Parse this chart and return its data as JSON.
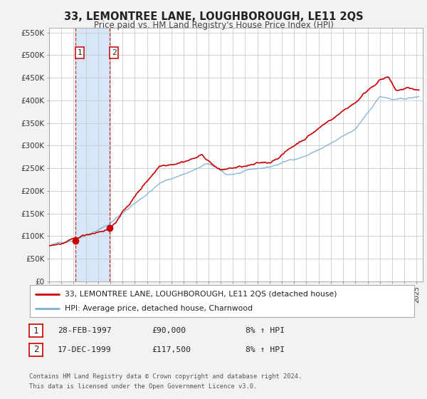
{
  "title": "33, LEMONTREE LANE, LOUGHBOROUGH, LE11 2QS",
  "subtitle": "Price paid vs. HM Land Registry's House Price Index (HPI)",
  "legend_line1": "33, LEMONTREE LANE, LOUGHBOROUGH, LE11 2QS (detached house)",
  "legend_line2": "HPI: Average price, detached house, Charnwood",
  "transaction1_date": "28-FEB-1997",
  "transaction1_price": "£90,000",
  "transaction1_hpi": "8% ↑ HPI",
  "transaction2_date": "17-DEC-1999",
  "transaction2_price": "£117,500",
  "transaction2_hpi": "8% ↑ HPI",
  "footer_line1": "Contains HM Land Registry data © Crown copyright and database right 2024.",
  "footer_line2": "This data is licensed under the Open Government Licence v3.0.",
  "red_color": "#cc0000",
  "blue_color": "#7ab0d4",
  "bg_color": "#f2f2f2",
  "plot_bg_color": "#ffffff",
  "grid_color": "#cccccc",
  "shade_color": "#d6e8f7",
  "transaction1_x": 1997.16,
  "transaction2_x": 1999.96,
  "transaction1_y": 90000,
  "transaction2_y": 117500,
  "xlim": [
    1995.0,
    2025.5
  ],
  "ylim": [
    0,
    560000
  ],
  "yticks": [
    0,
    50000,
    100000,
    150000,
    200000,
    250000,
    300000,
    350000,
    400000,
    450000,
    500000,
    550000
  ],
  "ytick_labels": [
    "£0",
    "£50K",
    "£100K",
    "£150K",
    "£200K",
    "£250K",
    "£300K",
    "£350K",
    "£400K",
    "£450K",
    "£500K",
    "£550K"
  ]
}
